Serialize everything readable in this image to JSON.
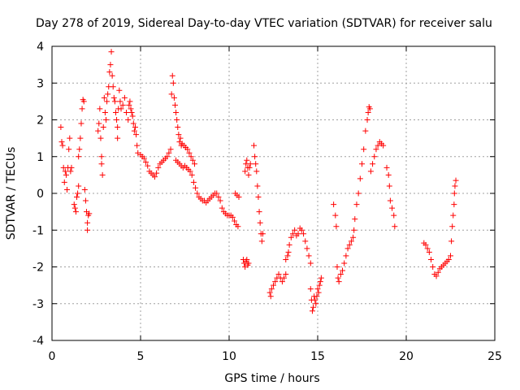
{
  "chart_data": {
    "type": "scatter",
    "title": "Day 278 of 2019, Sidereal Day-to-day VTEC variation (SDTVAR) for receiver salu",
    "xlabel": "GPS time / hours",
    "ylabel": "SDTVAR / TECUs",
    "xlim": [
      0,
      25
    ],
    "ylim": [
      -4,
      4
    ],
    "xticks": [
      0,
      5,
      10,
      15,
      20,
      25
    ],
    "yticks": [
      -4,
      -3,
      -2,
      -1,
      0,
      1,
      2,
      3,
      4
    ],
    "grid": true,
    "marker": "+",
    "marker_color": "#ff0000",
    "series": [
      {
        "name": "SDTVAR",
        "points": [
          [
            0.5,
            1.8
          ],
          [
            0.55,
            1.4
          ],
          [
            0.6,
            1.3
          ],
          [
            0.65,
            0.7
          ],
          [
            0.7,
            0.3
          ],
          [
            0.75,
            0.6
          ],
          [
            0.8,
            0.5
          ],
          [
            0.85,
            0.1
          ],
          [
            0.9,
            0.7
          ],
          [
            0.95,
            1.2
          ],
          [
            1.0,
            1.5
          ],
          [
            1.05,
            0.6
          ],
          [
            1.1,
            0.7
          ],
          [
            1.25,
            -0.3
          ],
          [
            1.3,
            -0.4
          ],
          [
            1.35,
            -0.5
          ],
          [
            1.4,
            -0.1
          ],
          [
            1.45,
            0.0
          ],
          [
            1.5,
            0.2
          ],
          [
            1.5,
            1.0
          ],
          [
            1.55,
            1.2
          ],
          [
            1.6,
            1.5
          ],
          [
            1.65,
            1.9
          ],
          [
            1.7,
            2.3
          ],
          [
            1.75,
            2.55
          ],
          [
            1.8,
            2.5
          ],
          [
            1.85,
            0.1
          ],
          [
            1.9,
            -0.2
          ],
          [
            1.95,
            -0.5
          ],
          [
            2.0,
            -0.8
          ],
          [
            2.0,
            -1.0
          ],
          [
            2.05,
            -0.6
          ],
          [
            2.1,
            -0.55
          ],
          [
            2.6,
            1.7
          ],
          [
            2.65,
            1.9
          ],
          [
            2.7,
            2.3
          ],
          [
            2.75,
            1.5
          ],
          [
            2.8,
            1.0
          ],
          [
            2.8,
            0.8
          ],
          [
            2.85,
            0.5
          ],
          [
            2.9,
            1.8
          ],
          [
            2.95,
            2.6
          ],
          [
            3.0,
            2.2
          ],
          [
            3.05,
            2.0
          ],
          [
            3.1,
            2.5
          ],
          [
            3.15,
            2.7
          ],
          [
            3.2,
            2.9
          ],
          [
            3.25,
            3.3
          ],
          [
            3.3,
            3.5
          ],
          [
            3.35,
            3.85
          ],
          [
            3.4,
            3.2
          ],
          [
            3.45,
            2.9
          ],
          [
            3.5,
            2.6
          ],
          [
            3.55,
            2.5
          ],
          [
            3.6,
            2.2
          ],
          [
            3.65,
            2.0
          ],
          [
            3.7,
            1.8
          ],
          [
            3.7,
            1.5
          ],
          [
            3.75,
            2.3
          ],
          [
            3.8,
            2.8
          ],
          [
            3.85,
            2.5
          ],
          [
            3.9,
            2.3
          ],
          [
            4.0,
            2.4
          ],
          [
            4.1,
            2.6
          ],
          [
            4.2,
            2.2
          ],
          [
            4.3,
            2.0
          ],
          [
            4.35,
            2.4
          ],
          [
            4.4,
            2.5
          ],
          [
            4.45,
            2.3
          ],
          [
            4.5,
            2.2
          ],
          [
            4.55,
            2.1
          ],
          [
            4.6,
            1.9
          ],
          [
            4.65,
            1.7
          ],
          [
            4.7,
            1.8
          ],
          [
            4.75,
            1.6
          ],
          [
            4.8,
            1.3
          ],
          [
            4.85,
            1.1
          ],
          [
            5.0,
            1.05
          ],
          [
            5.1,
            1.0
          ],
          [
            5.2,
            0.95
          ],
          [
            5.3,
            0.85
          ],
          [
            5.4,
            0.75
          ],
          [
            5.5,
            0.6
          ],
          [
            5.6,
            0.55
          ],
          [
            5.7,
            0.5
          ],
          [
            5.8,
            0.45
          ],
          [
            5.9,
            0.55
          ],
          [
            6.0,
            0.7
          ],
          [
            6.1,
            0.8
          ],
          [
            6.2,
            0.85
          ],
          [
            6.3,
            0.9
          ],
          [
            6.4,
            0.95
          ],
          [
            6.5,
            1.0
          ],
          [
            6.6,
            1.1
          ],
          [
            6.7,
            1.2
          ],
          [
            6.75,
            2.7
          ],
          [
            6.8,
            3.2
          ],
          [
            6.85,
            3.0
          ],
          [
            6.9,
            2.6
          ],
          [
            6.95,
            2.4
          ],
          [
            7.0,
            2.2
          ],
          [
            7.05,
            2.0
          ],
          [
            7.1,
            1.8
          ],
          [
            7.15,
            1.6
          ],
          [
            7.2,
            1.4
          ],
          [
            7.25,
            1.5
          ],
          [
            7.3,
            1.3
          ],
          [
            7.0,
            0.9
          ],
          [
            7.1,
            0.85
          ],
          [
            7.2,
            0.8
          ],
          [
            7.3,
            0.75
          ],
          [
            7.4,
            0.7
          ],
          [
            7.5,
            0.75
          ],
          [
            7.6,
            0.7
          ],
          [
            7.7,
            0.65
          ],
          [
            7.8,
            0.6
          ],
          [
            7.9,
            0.5
          ],
          [
            8.0,
            0.3
          ],
          [
            8.1,
            0.15
          ],
          [
            7.35,
            1.35
          ],
          [
            7.45,
            1.3
          ],
          [
            7.55,
            1.25
          ],
          [
            7.65,
            1.2
          ],
          [
            7.75,
            1.1
          ],
          [
            7.85,
            1.0
          ],
          [
            7.95,
            0.9
          ],
          [
            8.05,
            0.8
          ],
          [
            8.2,
            0.0
          ],
          [
            8.3,
            -0.1
          ],
          [
            8.4,
            -0.15
          ],
          [
            8.5,
            -0.2
          ],
          [
            8.6,
            -0.2
          ],
          [
            8.7,
            -0.25
          ],
          [
            8.8,
            -0.2
          ],
          [
            8.9,
            -0.15
          ],
          [
            9.0,
            -0.1
          ],
          [
            9.1,
            -0.05
          ],
          [
            9.2,
            0.0
          ],
          [
            9.3,
            0.0
          ],
          [
            9.4,
            -0.1
          ],
          [
            9.5,
            -0.2
          ],
          [
            9.6,
            -0.4
          ],
          [
            9.7,
            -0.5
          ],
          [
            9.8,
            -0.55
          ],
          [
            9.9,
            -0.6
          ],
          [
            10.0,
            -0.6
          ],
          [
            10.1,
            -0.6
          ],
          [
            10.2,
            -0.65
          ],
          [
            10.3,
            -0.75
          ],
          [
            10.4,
            -0.85
          ],
          [
            10.5,
            -0.9
          ],
          [
            10.35,
            0.0
          ],
          [
            10.45,
            -0.05
          ],
          [
            10.55,
            -0.1
          ],
          [
            10.8,
            -1.8
          ],
          [
            10.85,
            -1.9
          ],
          [
            10.9,
            -2.0
          ],
          [
            10.95,
            -1.85
          ],
          [
            11.0,
            -1.8
          ],
          [
            11.05,
            -1.95
          ],
          [
            11.1,
            -1.9
          ],
          [
            10.9,
            0.6
          ],
          [
            10.95,
            0.8
          ],
          [
            11.0,
            0.9
          ],
          [
            11.05,
            0.7
          ],
          [
            11.1,
            0.5
          ],
          [
            11.15,
            0.7
          ],
          [
            11.2,
            0.8
          ],
          [
            11.4,
            1.3
          ],
          [
            11.45,
            1.0
          ],
          [
            11.5,
            0.8
          ],
          [
            11.55,
            0.6
          ],
          [
            11.6,
            0.2
          ],
          [
            11.65,
            -0.1
          ],
          [
            11.7,
            -0.5
          ],
          [
            11.75,
            -0.8
          ],
          [
            11.8,
            -1.1
          ],
          [
            11.85,
            -1.3
          ],
          [
            11.9,
            -1.1
          ],
          [
            12.3,
            -2.7
          ],
          [
            12.35,
            -2.8
          ],
          [
            12.4,
            -2.6
          ],
          [
            12.5,
            -2.5
          ],
          [
            12.6,
            -2.4
          ],
          [
            12.7,
            -2.3
          ],
          [
            12.8,
            -2.2
          ],
          [
            12.9,
            -2.3
          ],
          [
            13.0,
            -2.4
          ],
          [
            13.1,
            -2.3
          ],
          [
            13.2,
            -2.2
          ],
          [
            13.2,
            -1.8
          ],
          [
            13.3,
            -1.7
          ],
          [
            13.35,
            -1.6
          ],
          [
            13.4,
            -1.4
          ],
          [
            13.5,
            -1.2
          ],
          [
            13.6,
            -1.1
          ],
          [
            13.7,
            -1.0
          ],
          [
            13.8,
            -1.15
          ],
          [
            13.9,
            -1.1
          ],
          [
            14.0,
            -0.95
          ],
          [
            14.1,
            -1.0
          ],
          [
            14.2,
            -1.1
          ],
          [
            14.3,
            -1.3
          ],
          [
            14.4,
            -1.5
          ],
          [
            14.5,
            -1.7
          ],
          [
            14.6,
            -1.9
          ],
          [
            14.6,
            -2.6
          ],
          [
            14.65,
            -2.9
          ],
          [
            14.7,
            -3.2
          ],
          [
            14.75,
            -3.1
          ],
          [
            14.8,
            -2.8
          ],
          [
            14.85,
            -2.9
          ],
          [
            14.9,
            -3.0
          ],
          [
            14.95,
            -2.8
          ],
          [
            15.0,
            -2.6
          ],
          [
            15.05,
            -2.7
          ],
          [
            15.1,
            -2.5
          ],
          [
            15.15,
            -2.4
          ],
          [
            15.2,
            -2.3
          ],
          [
            15.9,
            -0.3
          ],
          [
            16.0,
            -0.6
          ],
          [
            16.05,
            -0.9
          ],
          [
            16.1,
            -2.0
          ],
          [
            16.15,
            -2.3
          ],
          [
            16.2,
            -2.4
          ],
          [
            16.3,
            -2.2
          ],
          [
            16.4,
            -2.1
          ],
          [
            16.5,
            -1.9
          ],
          [
            16.6,
            -1.7
          ],
          [
            16.7,
            -1.5
          ],
          [
            16.8,
            -1.4
          ],
          [
            16.9,
            -1.3
          ],
          [
            17.0,
            -1.2
          ],
          [
            17.05,
            -1.0
          ],
          [
            17.1,
            -0.7
          ],
          [
            17.2,
            -0.3
          ],
          [
            17.3,
            0.0
          ],
          [
            17.4,
            0.4
          ],
          [
            17.5,
            0.8
          ],
          [
            17.6,
            1.2
          ],
          [
            17.7,
            1.7
          ],
          [
            17.8,
            2.0
          ],
          [
            17.85,
            2.2
          ],
          [
            17.9,
            2.35
          ],
          [
            17.95,
            2.3
          ],
          [
            18.0,
            0.6
          ],
          [
            18.1,
            0.8
          ],
          [
            18.2,
            1.0
          ],
          [
            18.3,
            1.2
          ],
          [
            18.4,
            1.3
          ],
          [
            18.5,
            1.4
          ],
          [
            18.6,
            1.35
          ],
          [
            18.7,
            1.3
          ],
          [
            18.9,
            0.7
          ],
          [
            19.0,
            0.5
          ],
          [
            19.05,
            0.2
          ],
          [
            19.1,
            -0.2
          ],
          [
            19.2,
            -0.4
          ],
          [
            19.3,
            -0.6
          ],
          [
            19.35,
            -0.9
          ],
          [
            21.0,
            -1.35
          ],
          [
            21.1,
            -1.4
          ],
          [
            21.2,
            -1.5
          ],
          [
            21.3,
            -1.6
          ],
          [
            21.4,
            -1.8
          ],
          [
            21.5,
            -2.0
          ],
          [
            21.6,
            -2.2
          ],
          [
            21.7,
            -2.25
          ],
          [
            21.8,
            -2.15
          ],
          [
            21.9,
            -2.05
          ],
          [
            22.0,
            -2.0
          ],
          [
            22.1,
            -1.95
          ],
          [
            22.2,
            -1.9
          ],
          [
            22.3,
            -1.85
          ],
          [
            22.4,
            -1.8
          ],
          [
            22.5,
            -1.7
          ],
          [
            22.55,
            -1.3
          ],
          [
            22.6,
            -0.9
          ],
          [
            22.65,
            -0.6
          ],
          [
            22.7,
            -0.3
          ],
          [
            22.72,
            0.0
          ],
          [
            22.75,
            0.2
          ],
          [
            22.8,
            0.35
          ]
        ]
      }
    ]
  }
}
